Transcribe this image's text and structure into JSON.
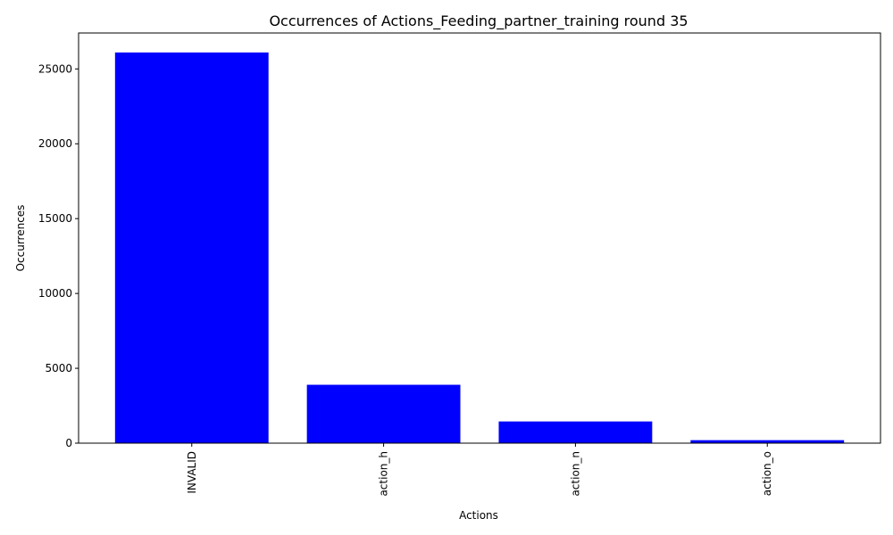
{
  "chart_data": {
    "type": "bar",
    "title": "Occurrences of Actions_Feeding_partner_training round 35",
    "xlabel": "Actions",
    "ylabel": "Occurrences",
    "categories": [
      "INVALID",
      "action_h",
      "action_n",
      "action_o"
    ],
    "values": [
      26100,
      3900,
      1450,
      200
    ],
    "ylim": [
      0,
      27400
    ],
    "yticks": [
      0,
      5000,
      10000,
      15000,
      20000,
      25000
    ],
    "bar_color": "#0000ff",
    "grid": false,
    "legend": "none"
  }
}
